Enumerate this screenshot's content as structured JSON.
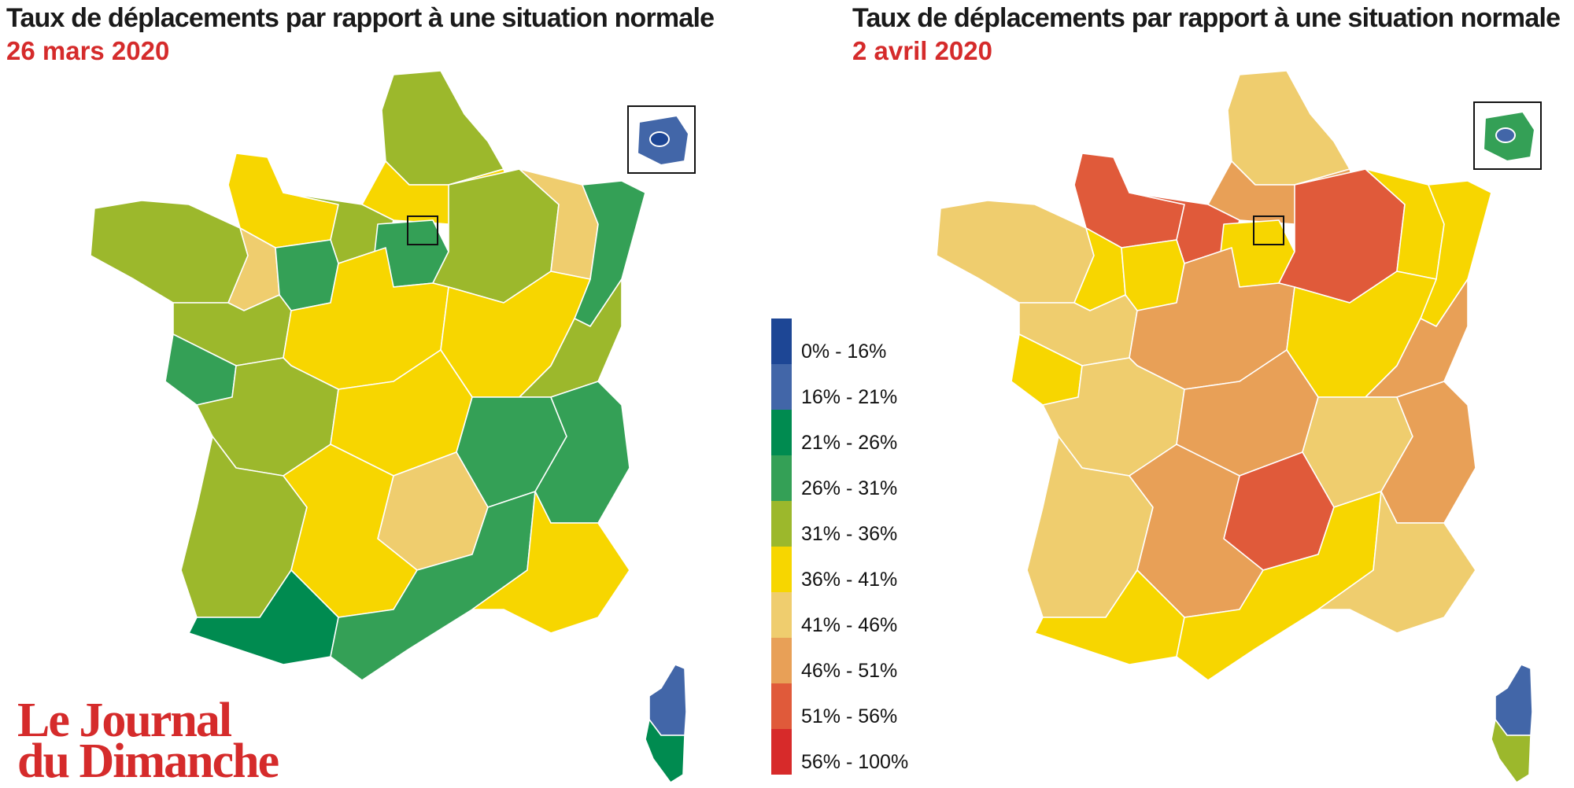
{
  "left_panel": {
    "title": "Taux de déplacements par rapport à une situation normale",
    "date": "26 mars 2020",
    "regions": {
      "brittany": "c3136",
      "normandy_west": "c3641",
      "normandy_east": "c3136",
      "nord": "c3136",
      "picardie": "c3641",
      "ile_de_france": "c2631",
      "paris_inset": "c1621",
      "champagne": "c3136",
      "lorraine": "c4146",
      "alsace": "c2631",
      "pays_de_loire": "c3136",
      "mayenne": "c4146",
      "sarthe": "c2631",
      "vendee": "c2631",
      "centre": "c3641",
      "bourgogne": "c3641",
      "franche_comte": "c3136",
      "poitou": "c3136",
      "limousin": "c3641",
      "auvergne": "c4146",
      "rhone": "c2631",
      "alpes": "c2631",
      "aquitaine": "c3136",
      "midi": "c3641",
      "pyrenees": "c2126",
      "languedoc": "c2631",
      "provence": "c3641",
      "corsica_north": "c1621",
      "corsica_south": "c2126"
    }
  },
  "right_panel": {
    "title": "Taux de déplacements par rapport à une situation normale",
    "date": "2 avril 2020",
    "regions": {
      "brittany": "c4146",
      "normandy_west": "c5156",
      "normandy_east": "c5156",
      "nord": "c4146",
      "picardie": "c4651",
      "ile_de_france": "c3641",
      "paris_inset": "c2631",
      "champagne": "c5156",
      "lorraine": "c3641",
      "alsace": "c3641",
      "pays_de_loire": "c4146",
      "mayenne": "c3641",
      "sarthe": "c3641",
      "vendee": "c3641",
      "centre": "c4651",
      "bourgogne": "c3641",
      "franche_comte": "c4651",
      "poitou": "c4146",
      "limousin": "c4651",
      "auvergne": "c5156",
      "rhone": "c4146",
      "alpes": "c4651",
      "aquitaine": "c4146",
      "midi": "c4651",
      "pyrenees": "c3641",
      "languedoc": "c3641",
      "provence": "c4146",
      "corsica_north": "c1621",
      "corsica_south": "c3136"
    }
  },
  "legend": {
    "items": [
      {
        "id": "c016",
        "label": "0% - 16%",
        "color": "#1d4695"
      },
      {
        "id": "c1621",
        "label": "16% - 21%",
        "color": "#4266a8"
      },
      {
        "id": "c2126",
        "label": "21% - 26%",
        "color": "#008b50"
      },
      {
        "id": "c2631",
        "label": "26% - 31%",
        "color": "#34a056"
      },
      {
        "id": "c3136",
        "label": "31% - 36%",
        "color": "#9cb82c"
      },
      {
        "id": "c3641",
        "label": "36% - 41%",
        "color": "#f7d600"
      },
      {
        "id": "c4146",
        "label": "41% - 46%",
        "color": "#efcd6e"
      },
      {
        "id": "c4651",
        "label": "46% - 51%",
        "color": "#e8a057"
      },
      {
        "id": "c5156",
        "label": "51% - 56%",
        "color": "#e05a3a"
      },
      {
        "id": "c56100",
        "label": "56% - 100%",
        "color": "#d72a2a"
      }
    ]
  },
  "logo": {
    "line1": "Le Journal",
    "line2": "du Dimanche"
  }
}
